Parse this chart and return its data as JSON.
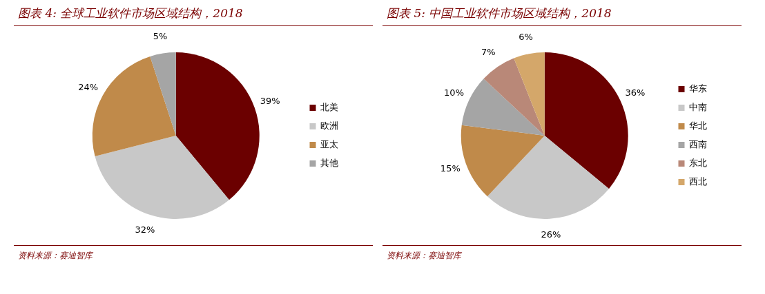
{
  "chart_data": [
    {
      "type": "pie",
      "title": "图表 4:  全球工业软件市场区域结构，2018",
      "categories": [
        "北美",
        "欧洲",
        "亚太",
        "其他"
      ],
      "values": [
        39,
        32,
        24,
        5
      ],
      "value_labels": [
        "39%",
        "32%",
        "24%",
        "5%"
      ],
      "colors": [
        "#6b0000",
        "#c8c8c8",
        "#c08a4a",
        "#a5a5a5"
      ],
      "legend": "right",
      "annotations": [
        "资料来源：赛迪智库"
      ]
    },
    {
      "type": "pie",
      "title": "图表 5:  中国工业软件市场区域结构，2018",
      "categories": [
        "华东",
        "中南",
        "华北",
        "西南",
        "东北",
        "西北"
      ],
      "values": [
        36,
        26,
        15,
        10,
        7,
        6
      ],
      "value_labels": [
        "36%",
        "26%",
        "15%",
        "10%",
        "7%",
        "6%"
      ],
      "colors": [
        "#6b0000",
        "#c8c8c8",
        "#c08a4a",
        "#a5a5a5",
        "#b98878",
        "#d4a76a"
      ],
      "legend": "right",
      "annotations": [
        "资料来源：赛迪智库"
      ]
    }
  ]
}
